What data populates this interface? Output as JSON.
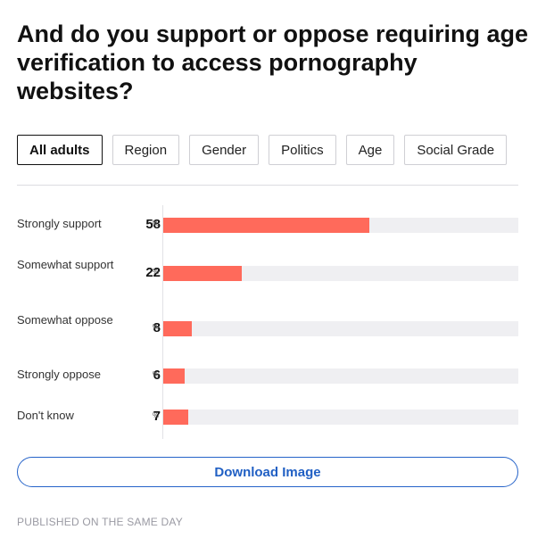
{
  "title": "And do you support or oppose requiring age verification to access pornography websites?",
  "tabs": [
    {
      "label": "All adults",
      "active": true
    },
    {
      "label": "Region",
      "active": false
    },
    {
      "label": "Gender",
      "active": false
    },
    {
      "label": "Politics",
      "active": false
    },
    {
      "label": "Age",
      "active": false
    },
    {
      "label": "Social Grade",
      "active": false
    }
  ],
  "chart_data": {
    "type": "bar",
    "orientation": "horizontal",
    "categories": [
      "Strongly support",
      "Somewhat support",
      "Somewhat oppose",
      "Strongly oppose",
      "Don't know"
    ],
    "values": [
      58,
      22,
      8,
      6,
      7
    ],
    "unit": "%",
    "xlim": [
      0,
      100
    ],
    "bar_color": "#ff6a5b",
    "track_color": "#efeff2"
  },
  "download_label": "Download Image",
  "published": "PUBLISHED ON THE SAME DAY"
}
